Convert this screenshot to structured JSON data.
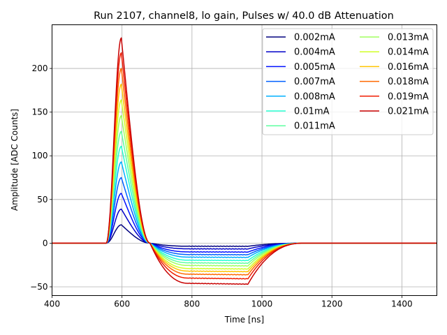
{
  "chart_data": {
    "type": "line",
    "title": "Run 2107, channel8, lo gain, Pulses w/ 40.0 dB Attenuation",
    "xlabel": "Time [ns]",
    "ylabel": "Amplitude [ADC Counts]",
    "xlim": [
      400,
      1500
    ],
    "ylim": [
      -60,
      250
    ],
    "xticks": [
      400,
      600,
      800,
      1000,
      1200,
      1400
    ],
    "yticks": [
      -50,
      0,
      50,
      100,
      150,
      200
    ],
    "grid": true,
    "legend_position": "top-right",
    "legend_columns": 2,
    "pulse_shape": {
      "baseline": 0,
      "rise_start_ns": 555,
      "peak_ns": 598,
      "zero_crossing_ns": 680,
      "undershoot_plateau_ns": [
        790,
        960
      ],
      "recovery_end_ns": 1120
    },
    "series": [
      {
        "name": "0.002mA",
        "color": "#00007f",
        "peak": 21,
        "undershoot": -3.5
      },
      {
        "name": "0.004mA",
        "color": "#0000c8",
        "peak": 39,
        "undershoot": -6.5
      },
      {
        "name": "0.005mA",
        "color": "#0010ff",
        "peak": 57,
        "undershoot": -10
      },
      {
        "name": "0.007mA",
        "color": "#0060ff",
        "peak": 75,
        "undershoot": -13
      },
      {
        "name": "0.008mA",
        "color": "#00b0ff",
        "peak": 93,
        "undershoot": -16
      },
      {
        "name": "0.01mA",
        "color": "#26ffd1",
        "peak": 111,
        "undershoot": -19.5
      },
      {
        "name": "0.011mA",
        "color": "#5effa0",
        "peak": 128,
        "undershoot": -22.5
      },
      {
        "name": "0.013mA",
        "color": "#a0ff5e",
        "peak": 146,
        "undershoot": -25.5
      },
      {
        "name": "0.014mA",
        "color": "#d1ff26",
        "peak": 164,
        "undershoot": -29
      },
      {
        "name": "0.016mA",
        "color": "#ffc400",
        "peak": 182,
        "undershoot": -32
      },
      {
        "name": "0.018mA",
        "color": "#ff6800",
        "peak": 200,
        "undershoot": -35.5
      },
      {
        "name": "0.019mA",
        "color": "#f01c00",
        "peak": 218,
        "undershoot": -40
      },
      {
        "name": "0.021mA",
        "color": "#c80000",
        "peak": 235,
        "undershoot": -46
      }
    ]
  }
}
